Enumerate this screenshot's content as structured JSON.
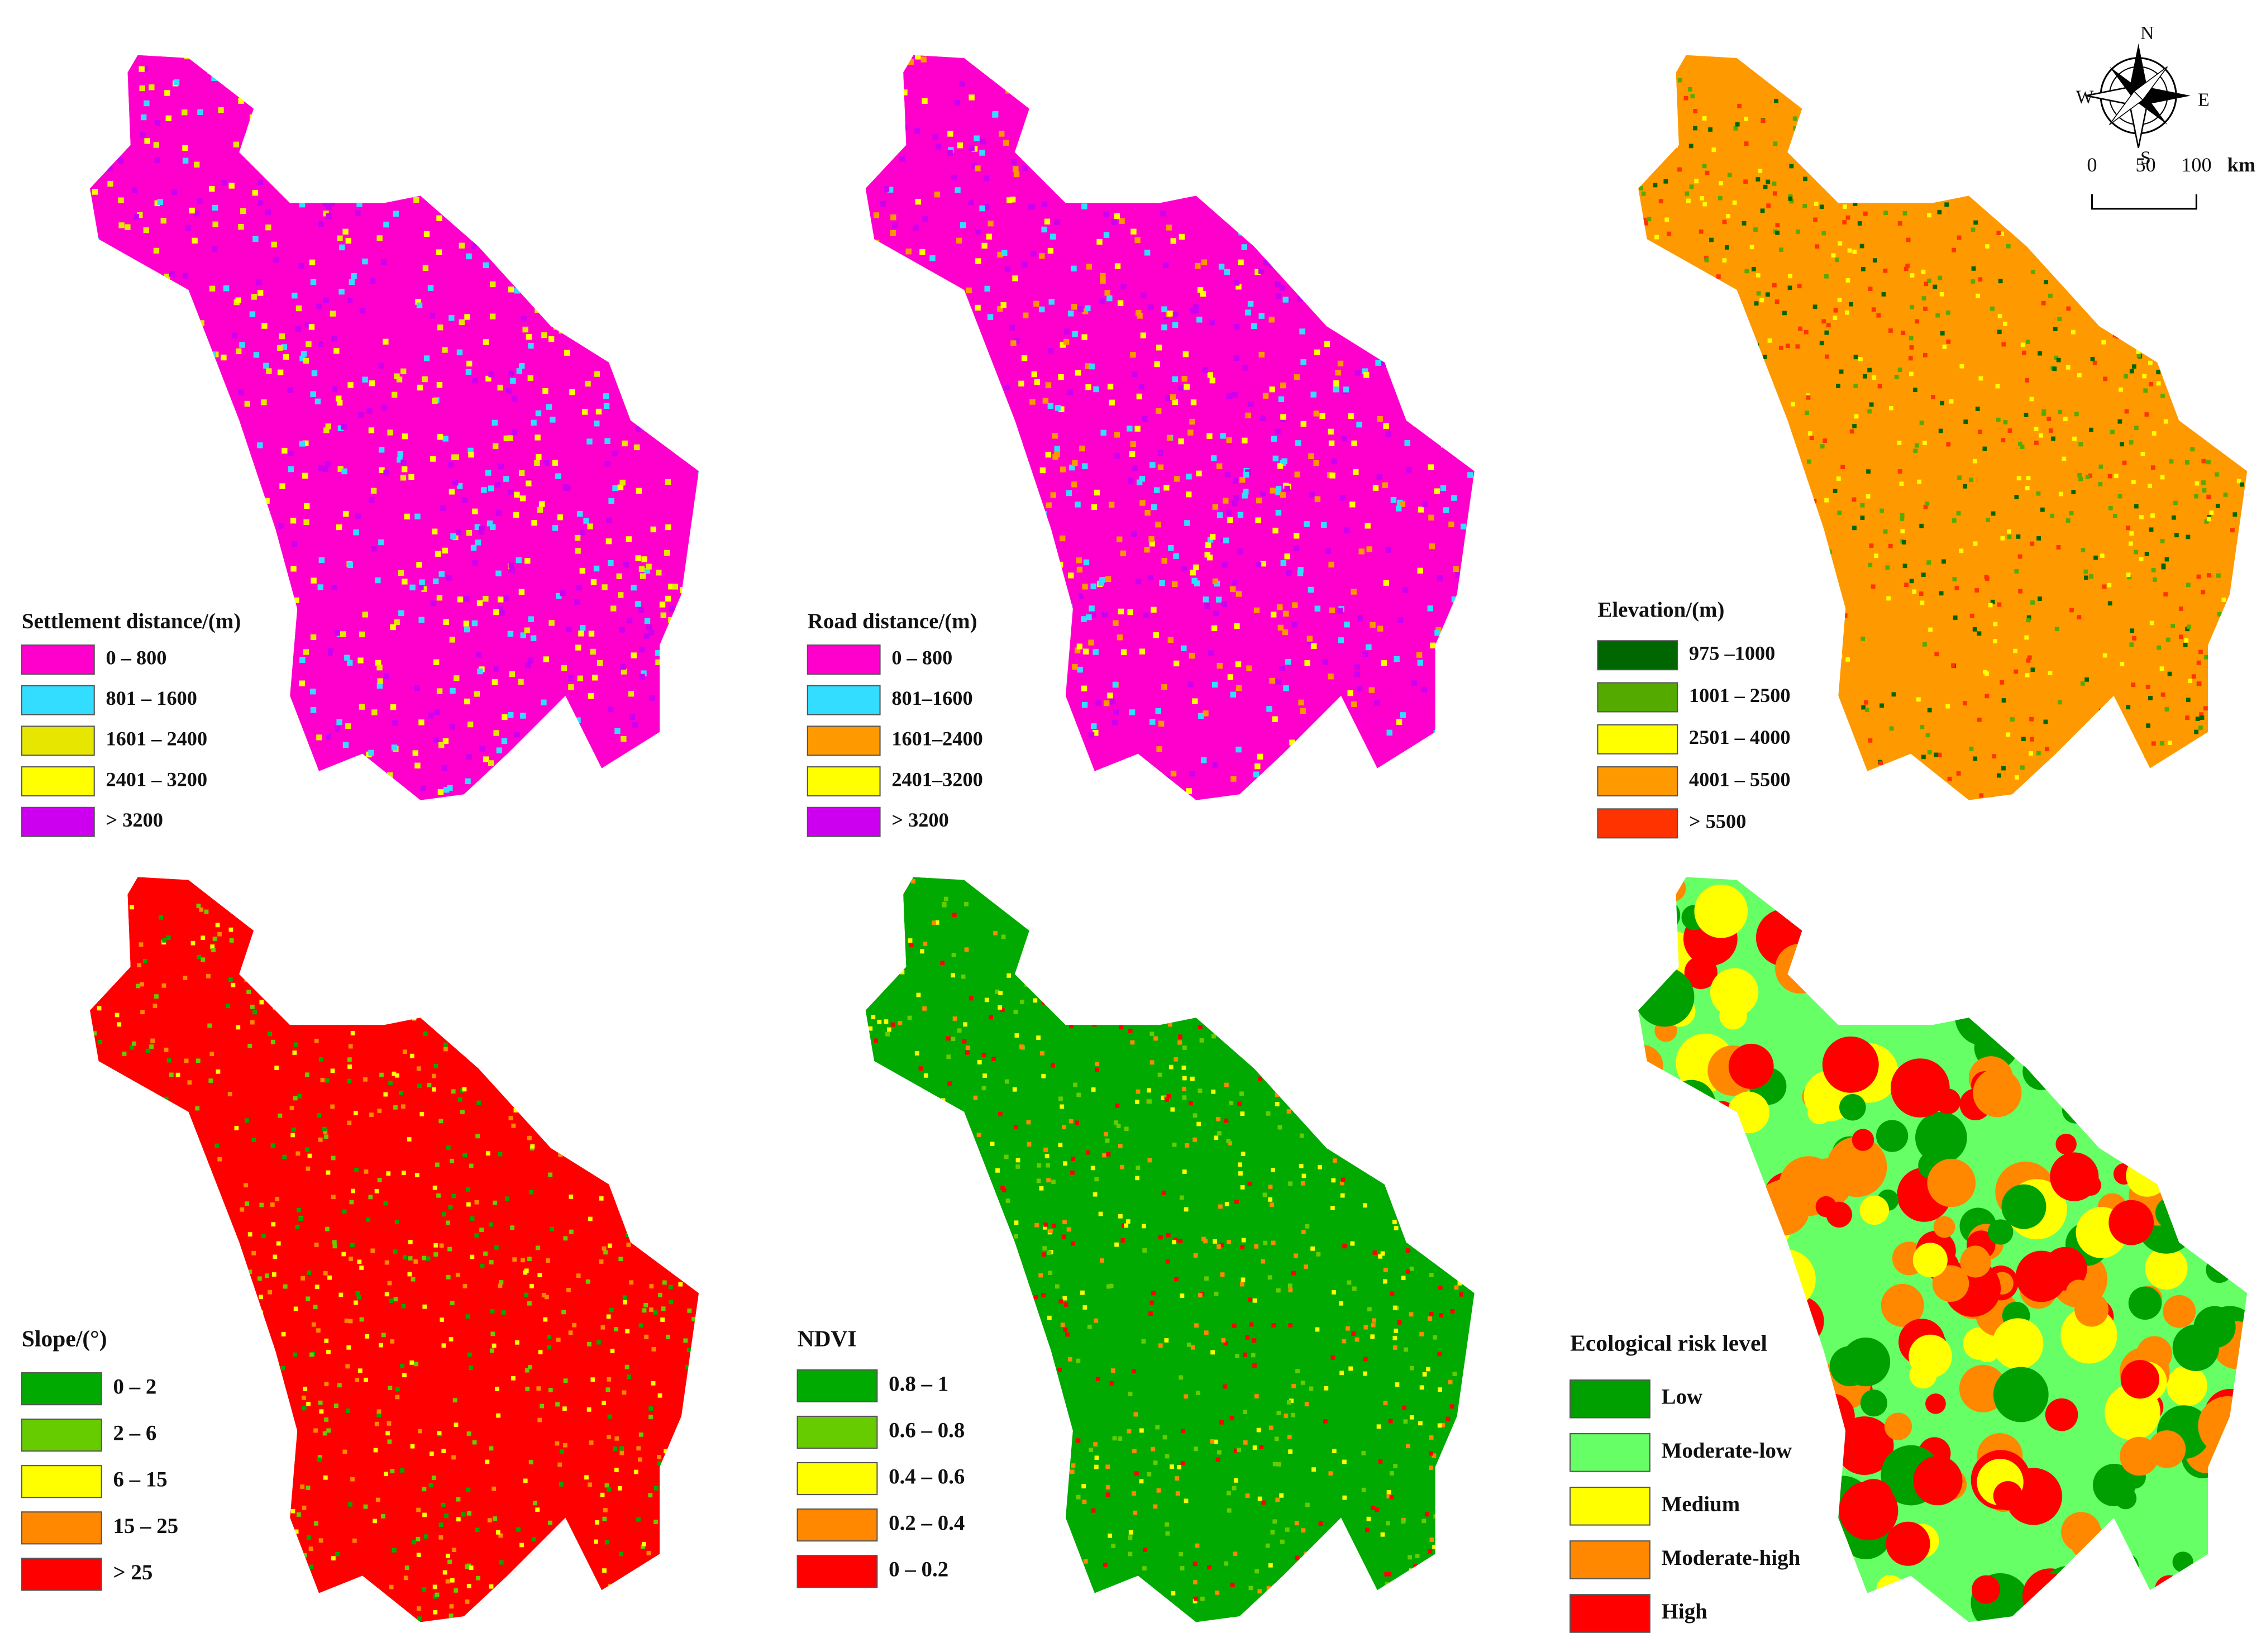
{
  "panels": [
    {
      "title": "Settlement distance/(m)",
      "legend": [
        {
          "label": "0 – 800",
          "color": "#ff00cc"
        },
        {
          "label": "801 – 1600",
          "color": "#33ddff"
        },
        {
          "label": "1601 – 2400",
          "color": "#e6e600"
        },
        {
          "label": "2401 – 3200",
          "color": "#ffff00"
        },
        {
          "label": "> 3200",
          "color": "#cc00ee"
        }
      ]
    },
    {
      "title": "Road distance/(m)",
      "legend": [
        {
          "label": "0 – 800",
          "color": "#ff00cc"
        },
        {
          "label": "801–1600",
          "color": "#33ddff"
        },
        {
          "label": "1601–2400",
          "color": "#ff9900"
        },
        {
          "label": "2401–3200",
          "color": "#ffff00"
        },
        {
          "label": "> 3200",
          "color": "#cc00ee"
        }
      ]
    },
    {
      "title": "Elevation/(m)",
      "legend": [
        {
          "label": "975 –1000",
          "color": "#006600"
        },
        {
          "label": "1001 – 2500",
          "color": "#55aa00"
        },
        {
          "label": "2501 – 4000",
          "color": "#ffff00"
        },
        {
          "label": "4001 – 5500",
          "color": "#ff9900"
        },
        {
          "label": "> 5500",
          "color": "#ff3300"
        }
      ]
    },
    {
      "title": "Slope/(°)",
      "legend": [
        {
          "label": "0 – 2",
          "color": "#00aa00"
        },
        {
          "label": "2 – 6",
          "color": "#66cc00"
        },
        {
          "label": "6 – 15",
          "color": "#ffff00"
        },
        {
          "label": "15 – 25",
          "color": "#ff8800"
        },
        {
          "label": "> 25",
          "color": "#ff0000"
        }
      ]
    },
    {
      "title": "NDVI",
      "legend": [
        {
          "label": "0.8 – 1",
          "color": "#00aa00"
        },
        {
          "label": "0.6 – 0.8",
          "color": "#66cc00"
        },
        {
          "label": "0.4 – 0.6",
          "color": "#ffff00"
        },
        {
          "label": "0.2 – 0.4",
          "color": "#ff8800"
        },
        {
          "label": "0 – 0.2",
          "color": "#ff0000"
        }
      ]
    },
    {
      "title": "Ecological risk level",
      "legend": [
        {
          "label": "Low",
          "color": "#00a000"
        },
        {
          "label": "Moderate-low",
          "color": "#66ff66"
        },
        {
          "label": "Medium",
          "color": "#ffff00"
        },
        {
          "label": "Moderate-high",
          "color": "#ff8800"
        },
        {
          "label": "High",
          "color": "#ff0000"
        }
      ]
    }
  ],
  "compass": {
    "north": "N",
    "south": "S",
    "west": "W",
    "east": "E"
  },
  "scale_bar": {
    "labels": [
      "0",
      "50",
      "100"
    ],
    "unit": "km"
  }
}
